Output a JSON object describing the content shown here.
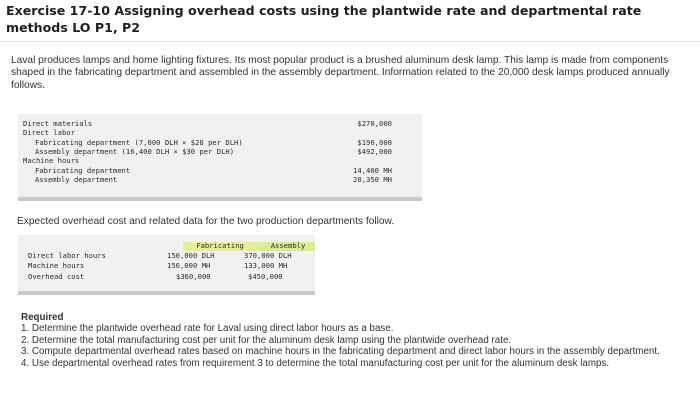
{
  "title": "Exercise 17-10 Assigning overhead costs using the plantwide rate and departmental rate methods LO P1, P2",
  "intro": "Laval produces lamps and home lighting fixtures. Its most popular product is a brushed aluminum desk lamp. This lamp is made from components shaped in the fabricating department and assembled in the assembly department. Information related to the 20,000 desk lamps produced annually follows.",
  "cost_table": {
    "rows": [
      {
        "label": "Direct materials",
        "value": "$270,000",
        "indent": 0
      },
      {
        "label": "Direct labor",
        "value": "",
        "indent": 0
      },
      {
        "label": "Fabricating department (7,000 DLH × $28 per DLH)",
        "value": "$196,000",
        "indent": 1
      },
      {
        "label": "Assembly department (16,400 DLH × $30 per DLH)",
        "value": "$492,000",
        "indent": 1
      },
      {
        "label": "Machine hours",
        "value": "",
        "indent": 0
      },
      {
        "label": "Fabricating department",
        "value": "14,400 MH",
        "indent": 1
      },
      {
        "label": "Assembly department",
        "value": "20,350 MH",
        "indent": 1
      }
    ]
  },
  "mid_text": "Expected overhead cost and related data for the two production departments follow.",
  "dept_table": {
    "headers": [
      "Fabricating",
      "Assembly"
    ],
    "rows": [
      {
        "label": "Direct labor hours",
        "fab": "150,000 DLH",
        "asm": "370,000 DLH"
      },
      {
        "label": "Machine hours",
        "fab": "156,000 MH",
        "asm": "133,000 MH"
      },
      {
        "label": "Overhead cost",
        "fab": "$360,000",
        "asm": "$450,000"
      }
    ]
  },
  "required": {
    "heading": "Required",
    "items": [
      "1. Determine the plantwide overhead rate for Laval using direct labor hours as a base.",
      "2. Determine the total manufacturing cost per unit for the aluminum desk lamp using the plantwide overhead rate.",
      "3. Compute departmental overhead rates based on machine hours in the fabricating department and direct labor hours in the assembly department.",
      "4. Use departmental overhead rates from requirement 3 to determine the total manufacturing cost per unit for the aluminum desk lamps."
    ]
  }
}
